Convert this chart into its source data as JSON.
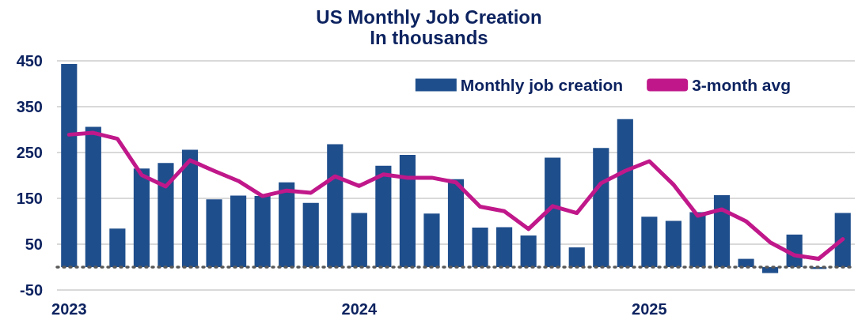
{
  "chart_data": {
    "type": "bar",
    "title": "US Monthly Job Creation",
    "subtitle": "In thousands",
    "categories": [
      "2023",
      null,
      null,
      null,
      null,
      null,
      null,
      null,
      null,
      null,
      null,
      null,
      "2024",
      null,
      null,
      null,
      null,
      null,
      null,
      null,
      null,
      null,
      null,
      null,
      "2025",
      null,
      null,
      null,
      null,
      null,
      null,
      null,
      null
    ],
    "series": [
      {
        "name": "Monthly job creation",
        "color": "#1f4e8c",
        "values": [
          443,
          306,
          84,
          215,
          227,
          256,
          148,
          156,
          155,
          185,
          140,
          268,
          118,
          221,
          245,
          117,
          192,
          86,
          87,
          69,
          239,
          43,
          260,
          323,
          110,
          101,
          120,
          157,
          18,
          -13,
          71,
          -4,
          118
        ]
      },
      {
        "name": "3-month avg",
        "type": "line",
        "color": "#c0188a",
        "values": [
          289,
          293,
          280,
          201,
          176,
          233,
          210,
          188,
          155,
          167,
          162,
          198,
          177,
          202,
          195,
          195,
          185,
          132,
          122,
          83,
          133,
          118,
          183,
          210,
          231,
          180,
          112,
          126,
          100,
          54,
          26,
          18,
          61
        ]
      }
    ],
    "ylim": [
      -50,
      450
    ],
    "yticks": [
      -50,
      50,
      150,
      250,
      350,
      450
    ],
    "grid": "y",
    "legend": "top right",
    "marker": "none",
    "line_style": "solid",
    "ref_lines": [
      {
        "axis": "y",
        "value": 0,
        "color": "#595959",
        "line_style": "dotted"
      }
    ]
  }
}
